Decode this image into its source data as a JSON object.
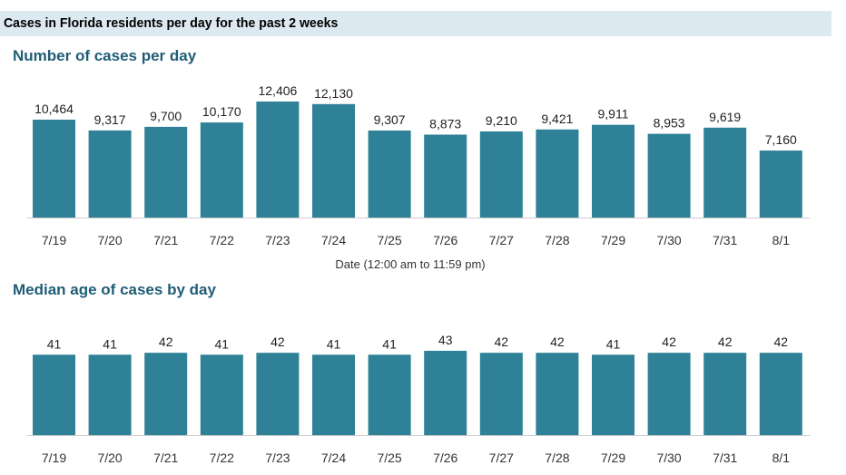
{
  "header": {
    "title": "Cases in Florida residents per day for the past 2 weeks"
  },
  "colors": {
    "bar": "#2e8196",
    "title": "#1f5d76",
    "banner": "#dde9f1",
    "axis": "#cccccc"
  },
  "chart_data": [
    {
      "type": "bar",
      "title": "Number of cases per day",
      "xlabel": "Date (12:00 am to 11:59 pm)",
      "ylabel": "",
      "categories": [
        "7/19",
        "7/20",
        "7/21",
        "7/22",
        "7/23",
        "7/24",
        "7/25",
        "7/26",
        "7/27",
        "7/28",
        "7/29",
        "7/30",
        "7/31",
        "8/1"
      ],
      "values": [
        10464,
        9317,
        9700,
        10170,
        12406,
        12130,
        9307,
        8873,
        9210,
        9421,
        9911,
        8953,
        9619,
        7160
      ],
      "value_labels": [
        "10,464",
        "9,317",
        "9,700",
        "10,170",
        "12,406",
        "12,130",
        "9,307",
        "8,873",
        "9,210",
        "9,421",
        "9,911",
        "8,953",
        "9,619",
        "7,160"
      ],
      "ylim": [
        0,
        12406
      ],
      "grid": false,
      "legend": "none"
    },
    {
      "type": "bar",
      "title": "Median age of cases by day",
      "xlabel": "",
      "ylabel": "",
      "categories": [
        "7/19",
        "7/20",
        "7/21",
        "7/22",
        "7/23",
        "7/24",
        "7/25",
        "7/26",
        "7/27",
        "7/28",
        "7/29",
        "7/30",
        "7/31",
        "8/1"
      ],
      "values": [
        41,
        41,
        42,
        41,
        42,
        41,
        41,
        43,
        42,
        42,
        41,
        42,
        42,
        42
      ],
      "value_labels": [
        "41",
        "41",
        "42",
        "41",
        "42",
        "41",
        "41",
        "43",
        "42",
        "42",
        "41",
        "42",
        "42",
        "42"
      ],
      "ylim": [
        0,
        43
      ],
      "grid": false,
      "legend": "none"
    }
  ]
}
